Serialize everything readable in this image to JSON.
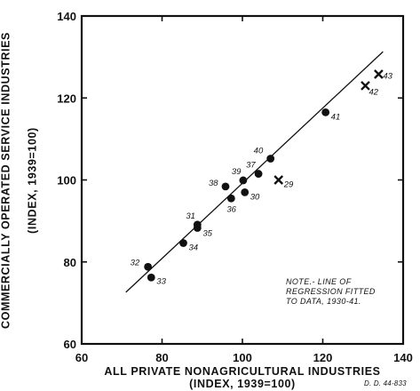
{
  "chart_data": {
    "type": "scatter",
    "title": "",
    "xlabel_line1": "ALL PRIVATE NONAGRICULTURAL INDUSTRIES",
    "xlabel_line2": "(INDEX, 1939=100)",
    "ylabel_line1": "COMMERCIALLY OPERATED SERVICE INDUSTRIES",
    "ylabel_line2": "(INDEX, 1939=100)",
    "xlim": [
      60,
      140
    ],
    "ylim": [
      60,
      140
    ],
    "x_ticks": [
      60,
      80,
      100,
      120,
      140
    ],
    "y_ticks": [
      60,
      80,
      100,
      120,
      140
    ],
    "note": [
      "NOTE.- LINE OF",
      "REGRESSION FITTED",
      "TO DATA, 1930-41."
    ],
    "figure_code": "D. D. 44-833",
    "regression_line": {
      "x": [
        71,
        135
      ],
      "y": [
        72.6,
        131.3
      ]
    },
    "series": [
      {
        "marker": "dot",
        "points": [
          {
            "x": 76.5,
            "y": 78.8,
            "label": "32"
          },
          {
            "x": 77.3,
            "y": 76.2,
            "label": "33"
          },
          {
            "x": 85.3,
            "y": 84.6,
            "label": "34"
          },
          {
            "x": 88.8,
            "y": 88.3,
            "label": "35"
          },
          {
            "x": 88.8,
            "y": 89.1,
            "label": "31"
          },
          {
            "x": 97.2,
            "y": 95.5,
            "label": "36"
          },
          {
            "x": 95.8,
            "y": 98.4,
            "label": "38"
          },
          {
            "x": 100.6,
            "y": 97.0,
            "label": "30"
          },
          {
            "x": 100.2,
            "y": 99.9,
            "label": "39"
          },
          {
            "x": 104.0,
            "y": 101.5,
            "label": "37"
          },
          {
            "x": 107.0,
            "y": 105.2,
            "label": "40"
          },
          {
            "x": 120.7,
            "y": 116.5,
            "label": "41"
          }
        ]
      },
      {
        "marker": "cross",
        "points": [
          {
            "x": 109.0,
            "y": 100.0,
            "label": "29"
          },
          {
            "x": 130.6,
            "y": 123.0,
            "label": "42"
          },
          {
            "x": 133.9,
            "y": 125.8,
            "label": "43"
          }
        ]
      }
    ]
  }
}
